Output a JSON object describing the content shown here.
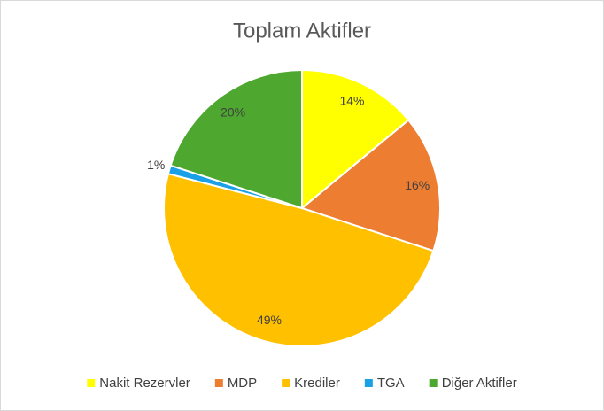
{
  "chart_data": {
    "type": "pie",
    "title": "Toplam Aktifler",
    "categories": [
      "Nakit Rezervler",
      "MDP",
      "Krediler",
      "TGA",
      "Diğer Aktifler"
    ],
    "values": [
      14,
      16,
      49,
      1,
      20
    ],
    "value_labels": [
      "14%",
      "16%",
      "49%",
      "1%",
      "20%"
    ],
    "colors": [
      "#FFFF00",
      "#ED7D31",
      "#FFC000",
      "#1AA0E6",
      "#4EA72E"
    ],
    "legend": "bottom"
  }
}
